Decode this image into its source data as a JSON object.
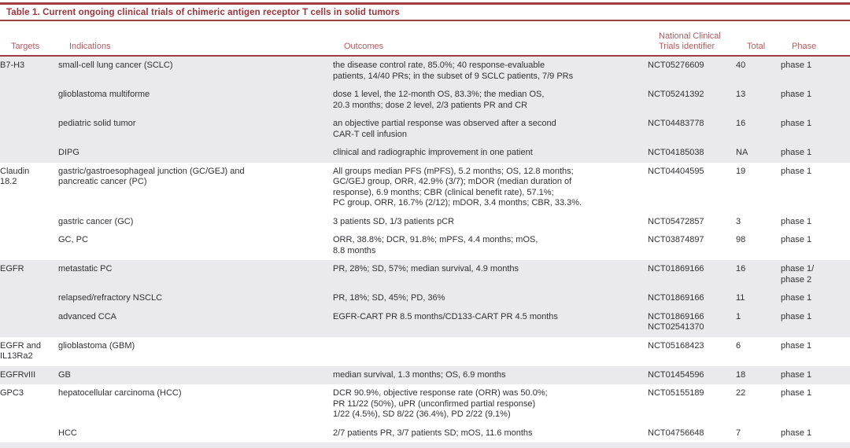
{
  "page": {
    "title": "Table 1. Current ongoing clinical trials of chimeric antigen receptor T cells in solid tumors"
  },
  "colors": {
    "accent_red": "#a13e43",
    "title_red": "#a1343a",
    "header_red": "#b25a5d",
    "row_shade": "#eaeaec",
    "body_text": "#313135"
  },
  "columns": {
    "targets": "Targets",
    "indications": "Indications",
    "outcomes": "Outcomes",
    "nct": "National Clinical\nTrials identifier",
    "total": "Total",
    "phase": "Phase"
  },
  "groups": [
    {
      "target": "B7-H3",
      "shaded": true,
      "rows": [
        {
          "indication": "small-cell lung cancer (SCLC)",
          "outcome": "the disease control rate, 85.0%; 40 response-evaluable\npatients, 14/40 PRs; in the subset of 9 SCLC patients, 7/9 PRs",
          "nct": "NCT05276609",
          "total": "40",
          "phase": "phase 1"
        },
        {
          "indication": "glioblastoma multiforme",
          "outcome": "dose 1 level, the 12-month OS, 83.3%; the median OS,\n20.3 months; dose 2 level, 2/3 patients PR and CR",
          "nct": "NCT05241392",
          "total": "13",
          "phase": "phase 1"
        },
        {
          "indication": "pediatric solid tumor",
          "outcome": "an objective partial response was observed after a second\nCAR-T cell infusion",
          "nct": "NCT04483778",
          "total": "16",
          "phase": "phase 1"
        },
        {
          "indication": "DIPG",
          "outcome": "clinical and radiographic improvement in one patient",
          "nct": "NCT04185038",
          "total": "NA",
          "phase": "phase 1"
        }
      ]
    },
    {
      "target": "Claudin\n18.2",
      "shaded": false,
      "rows": [
        {
          "indication": "gastric/gastroesophageal junction (GC/GEJ) and\npancreatic cancer (PC)",
          "outcome": "All groups median PFS (mPFS), 5.2 months; OS, 12.8 months;\nGC/GEJ group, ORR, 42.9% (3/7); mDOR (median duration of\nresponse), 6.9 months; CBR (clinical benefit rate), 57.1%;\nPC group, ORR, 16.7% (2/12); mDOR, 3.4 months; CBR, 33.3%.",
          "nct": "NCT04404595",
          "total": "19",
          "phase": "phase 1"
        },
        {
          "indication": "gastric cancer (GC)",
          "outcome": "3 patients SD, 1/3 patients pCR",
          "nct": "NCT05472857",
          "total": "3",
          "phase": "phase 1"
        },
        {
          "indication": "GC, PC",
          "outcome": "ORR, 38.8%; DCR, 91.8%; mPFS, 4.4 months; mOS,\n8.8 months",
          "nct": "NCT03874897",
          "total": "98",
          "phase": "phase 1"
        }
      ]
    },
    {
      "target": "EGFR",
      "shaded": true,
      "rows": [
        {
          "indication": "metastatic PC",
          "outcome": "PR, 28%; SD, 57%; median survival, 4.9 months",
          "nct": "NCT01869166",
          "total": "16",
          "phase": "phase 1/\nphase 2"
        },
        {
          "indication": "relapsed/refractory NSCLC",
          "outcome": "PR, 18%; SD, 45%; PD, 36%",
          "nct": "NCT01869166",
          "total": "11",
          "phase": "phase 1"
        },
        {
          "indication": "advanced CCA",
          "outcome": "EGFR-CART PR 8.5 months/CD133-CART PR 4.5 months",
          "nct": "NCT01869166\nNCT02541370",
          "total": "1",
          "phase": "phase 1"
        }
      ]
    },
    {
      "target": "EGFR and\nIL13Ra2",
      "shaded": false,
      "rows": [
        {
          "indication": "glioblastoma (GBM)",
          "outcome": "",
          "nct": "NCT05168423",
          "total": "6",
          "phase": "phase 1"
        }
      ]
    },
    {
      "target": "EGFRvIII",
      "shaded": true,
      "rows": [
        {
          "indication": "GB",
          "outcome": "median survival, 1.3 months; OS, 6.9 months",
          "nct": "NCT01454596",
          "total": "18",
          "phase": "phase 1"
        }
      ]
    },
    {
      "target": "GPC3",
      "shaded": false,
      "rows": [
        {
          "indication": "hepatocellular carcinoma (HCC)",
          "outcome": "DCR 90.9%, objective response rate (ORR) was 50.0%;\nPR 11/22 (50%), uPR (unconfirmed partial response)\n1/22 (4.5%), SD 8/22 (36.4%), PD 2/22 (9.1%)",
          "nct": "NCT05155189",
          "total": "22",
          "phase": "phase 1"
        },
        {
          "indication": "HCC",
          "outcome": "2/7 patients PR, 3/7 patients SD; mOS, 11.6 months",
          "nct": "NCT04756648",
          "total": "7",
          "phase": "phase 1"
        }
      ]
    }
  ]
}
